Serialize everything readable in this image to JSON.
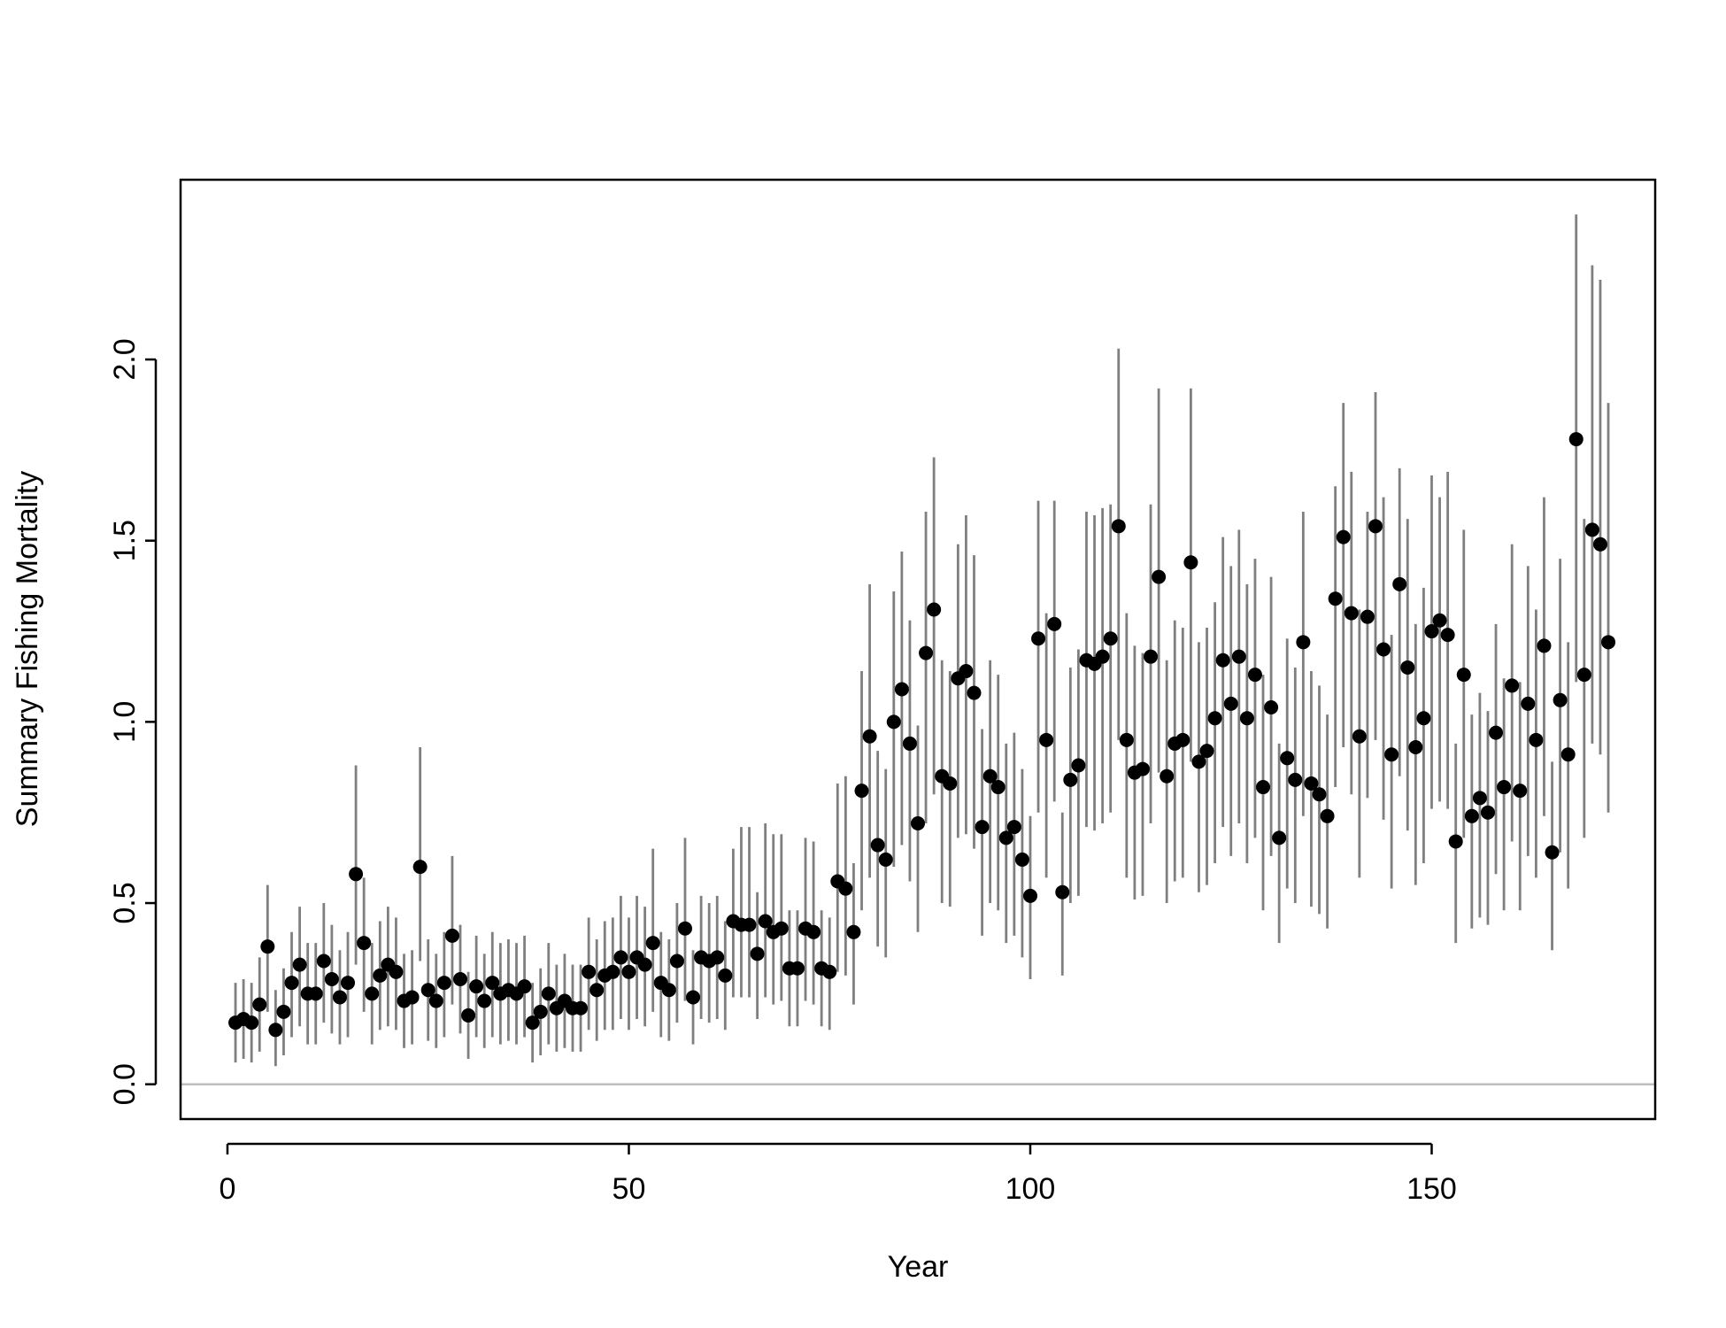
{
  "chart_data": {
    "type": "scatter_errorbar",
    "xlabel": "Year",
    "ylabel": "Summary Fishing Mortality",
    "x": [
      1,
      2,
      3,
      4,
      5,
      6,
      7,
      8,
      9,
      10,
      11,
      12,
      13,
      14,
      15,
      16,
      17,
      18,
      19,
      20,
      21,
      22,
      23,
      24,
      25,
      26,
      27,
      28,
      29,
      30,
      31,
      32,
      33,
      34,
      35,
      36,
      37,
      38,
      39,
      40,
      41,
      42,
      43,
      44,
      45,
      46,
      47,
      48,
      49,
      50,
      51,
      52,
      53,
      54,
      55,
      56,
      57,
      58,
      59,
      60,
      61,
      62,
      63,
      64,
      65,
      66,
      67,
      68,
      69,
      70,
      71,
      72,
      73,
      74,
      75,
      76,
      77,
      78,
      79,
      80,
      81,
      82,
      83,
      84,
      85,
      86,
      87,
      88,
      89,
      90,
      91,
      92,
      93,
      94,
      95,
      96,
      97,
      98,
      99,
      100,
      101,
      102,
      103,
      104,
      105,
      106,
      107,
      108,
      109,
      110,
      111,
      112,
      113,
      114,
      115,
      116,
      117,
      118,
      119,
      120,
      121,
      122,
      123,
      124,
      125,
      126,
      127,
      128,
      129,
      130,
      131,
      132,
      133,
      134,
      135,
      136,
      137,
      138,
      139,
      140,
      141,
      142,
      143,
      144,
      145,
      146,
      147,
      148,
      149,
      150,
      151,
      152,
      153,
      154,
      155,
      156,
      157,
      158,
      159,
      160,
      161,
      162,
      163,
      164,
      165,
      166,
      167,
      168,
      169,
      170,
      171,
      172
    ],
    "values": [
      0.17,
      0.18,
      0.17,
      0.22,
      0.38,
      0.15,
      0.2,
      0.28,
      0.33,
      0.25,
      0.25,
      0.34,
      0.29,
      0.24,
      0.28,
      0.58,
      0.39,
      0.25,
      0.3,
      0.33,
      0.31,
      0.23,
      0.24,
      0.6,
      0.26,
      0.23,
      0.28,
      0.41,
      0.29,
      0.19,
      0.27,
      0.23,
      0.28,
      0.25,
      0.26,
      0.25,
      0.27,
      0.17,
      0.2,
      0.25,
      0.21,
      0.23,
      0.21,
      0.21,
      0.31,
      0.26,
      0.3,
      0.31,
      0.35,
      0.31,
      0.35,
      0.33,
      0.39,
      0.28,
      0.26,
      0.34,
      0.43,
      0.24,
      0.35,
      0.34,
      0.35,
      0.3,
      0.45,
      0.44,
      0.44,
      0.36,
      0.45,
      0.42,
      0.43,
      0.32,
      0.32,
      0.43,
      0.42,
      0.32,
      0.31,
      0.56,
      0.54,
      0.42,
      0.81,
      0.96,
      0.66,
      0.62,
      1.0,
      1.09,
      0.94,
      0.72,
      1.19,
      1.31,
      0.85,
      0.83,
      1.12,
      1.14,
      1.08,
      0.71,
      0.85,
      0.82,
      0.68,
      0.71,
      0.62,
      0.52,
      1.23,
      0.95,
      1.27,
      0.53,
      0.84,
      0.88,
      1.17,
      1.16,
      1.18,
      1.23,
      1.54,
      0.95,
      0.86,
      0.87,
      1.18,
      1.4,
      0.85,
      0.94,
      0.95,
      1.44,
      0.89,
      0.92,
      1.01,
      1.17,
      1.05,
      1.18,
      1.01,
      1.13,
      0.82,
      1.04,
      0.68,
      0.9,
      0.84,
      1.22,
      0.83,
      0.8,
      0.74,
      1.34,
      1.51,
      1.3,
      0.96,
      1.29,
      1.54,
      1.2,
      0.91,
      1.38,
      1.15,
      0.93,
      1.01,
      1.25,
      1.28,
      1.24,
      0.67,
      1.13,
      0.74,
      0.79,
      0.75,
      0.97,
      0.82,
      1.1,
      0.81,
      1.05,
      0.95,
      1.21,
      0.64,
      1.06,
      0.91,
      1.78,
      1.13,
      1.53,
      1.49,
      1.22
    ],
    "lower": [
      0.06,
      0.07,
      0.06,
      0.09,
      0.2,
      0.05,
      0.08,
      0.13,
      0.16,
      0.11,
      0.11,
      0.17,
      0.14,
      0.11,
      0.13,
      0.33,
      0.2,
      0.11,
      0.15,
      0.16,
      0.15,
      0.1,
      0.11,
      0.34,
      0.12,
      0.1,
      0.13,
      0.22,
      0.14,
      0.07,
      0.13,
      0.1,
      0.13,
      0.11,
      0.12,
      0.11,
      0.13,
      0.06,
      0.08,
      0.11,
      0.09,
      0.1,
      0.09,
      0.09,
      0.15,
      0.12,
      0.15,
      0.15,
      0.18,
      0.15,
      0.18,
      0.16,
      0.2,
      0.13,
      0.12,
      0.17,
      0.23,
      0.11,
      0.18,
      0.17,
      0.18,
      0.15,
      0.24,
      0.24,
      0.24,
      0.18,
      0.24,
      0.22,
      0.23,
      0.16,
      0.16,
      0.23,
      0.22,
      0.16,
      0.15,
      0.31,
      0.3,
      0.22,
      0.48,
      0.57,
      0.38,
      0.35,
      0.6,
      0.66,
      0.56,
      0.42,
      0.72,
      0.8,
      0.5,
      0.49,
      0.68,
      0.69,
      0.65,
      0.41,
      0.5,
      0.48,
      0.39,
      0.41,
      0.35,
      0.29,
      0.75,
      0.57,
      0.78,
      0.3,
      0.5,
      0.52,
      0.71,
      0.7,
      0.72,
      0.75,
      0.95,
      0.57,
      0.51,
      0.52,
      0.72,
      0.86,
      0.5,
      0.56,
      0.57,
      0.89,
      0.53,
      0.55,
      0.61,
      0.71,
      0.63,
      0.72,
      0.61,
      0.68,
      0.48,
      0.63,
      0.39,
      0.54,
      0.5,
      0.74,
      0.49,
      0.47,
      0.43,
      0.82,
      0.93,
      0.8,
      0.57,
      0.79,
      0.95,
      0.73,
      0.54,
      0.85,
      0.7,
      0.55,
      0.61,
      0.76,
      0.78,
      0.76,
      0.39,
      0.68,
      0.43,
      0.46,
      0.44,
      0.58,
      0.48,
      0.67,
      0.48,
      0.63,
      0.57,
      0.74,
      0.37,
      0.64,
      0.54,
      1.11,
      0.68,
      0.94,
      0.91,
      0.75
    ],
    "upper": [
      0.28,
      0.29,
      0.28,
      0.35,
      0.55,
      0.26,
      0.32,
      0.42,
      0.49,
      0.39,
      0.39,
      0.5,
      0.44,
      0.37,
      0.42,
      0.88,
      0.57,
      0.39,
      0.45,
      0.49,
      0.46,
      0.36,
      0.37,
      0.93,
      0.4,
      0.36,
      0.42,
      0.63,
      0.44,
      0.31,
      0.41,
      0.36,
      0.42,
      0.39,
      0.4,
      0.39,
      0.41,
      0.28,
      0.32,
      0.39,
      0.33,
      0.36,
      0.33,
      0.33,
      0.46,
      0.4,
      0.45,
      0.46,
      0.52,
      0.46,
      0.52,
      0.49,
      0.65,
      0.42,
      0.4,
      0.5,
      0.68,
      0.37,
      0.52,
      0.5,
      0.52,
      0.45,
      0.65,
      0.71,
      0.71,
      0.53,
      0.72,
      0.69,
      0.69,
      0.48,
      0.48,
      0.68,
      0.67,
      0.48,
      0.46,
      0.83,
      0.85,
      0.61,
      1.14,
      1.38,
      0.92,
      0.87,
      1.36,
      1.47,
      1.28,
      0.99,
      1.58,
      1.73,
      1.17,
      1.14,
      1.49,
      1.57,
      1.46,
      0.98,
      1.17,
      1.13,
      0.94,
      0.97,
      0.87,
      0.74,
      1.61,
      1.3,
      1.61,
      0.75,
      1.15,
      1.2,
      1.58,
      1.57,
      1.59,
      1.6,
      2.03,
      1.3,
      1.21,
      1.19,
      1.6,
      1.92,
      1.17,
      1.28,
      1.26,
      1.92,
      1.22,
      1.26,
      1.33,
      1.51,
      1.43,
      1.53,
      1.38,
      1.45,
      1.13,
      1.4,
      0.94,
      1.23,
      1.15,
      1.58,
      1.14,
      1.1,
      1.02,
      1.65,
      1.88,
      1.69,
      1.31,
      1.58,
      1.91,
      1.62,
      1.24,
      1.7,
      1.56,
      1.27,
      1.37,
      1.68,
      1.62,
      1.69,
      0.94,
      1.53,
      1.02,
      1.08,
      1.03,
      1.27,
      1.12,
      1.49,
      1.11,
      1.43,
      1.31,
      1.62,
      0.89,
      1.45,
      1.22,
      2.4,
      1.56,
      2.26,
      2.22,
      1.88
    ],
    "color": "#000000",
    "error_color": "#7f7f7f",
    "reference_line": 0,
    "reference_line_color": "#bebebe",
    "xlim": [
      -5.84,
      177.84
    ],
    "xticks": [
      0,
      50,
      100,
      150
    ],
    "ylim": [
      -0.096,
      2.496
    ],
    "yticks": [
      {
        "value": 0,
        "label": "0.0"
      },
      0.5,
      {
        "value": 1,
        "label": "1.0"
      },
      1.5,
      {
        "value": 2,
        "label": "2.0"
      }
    ]
  }
}
